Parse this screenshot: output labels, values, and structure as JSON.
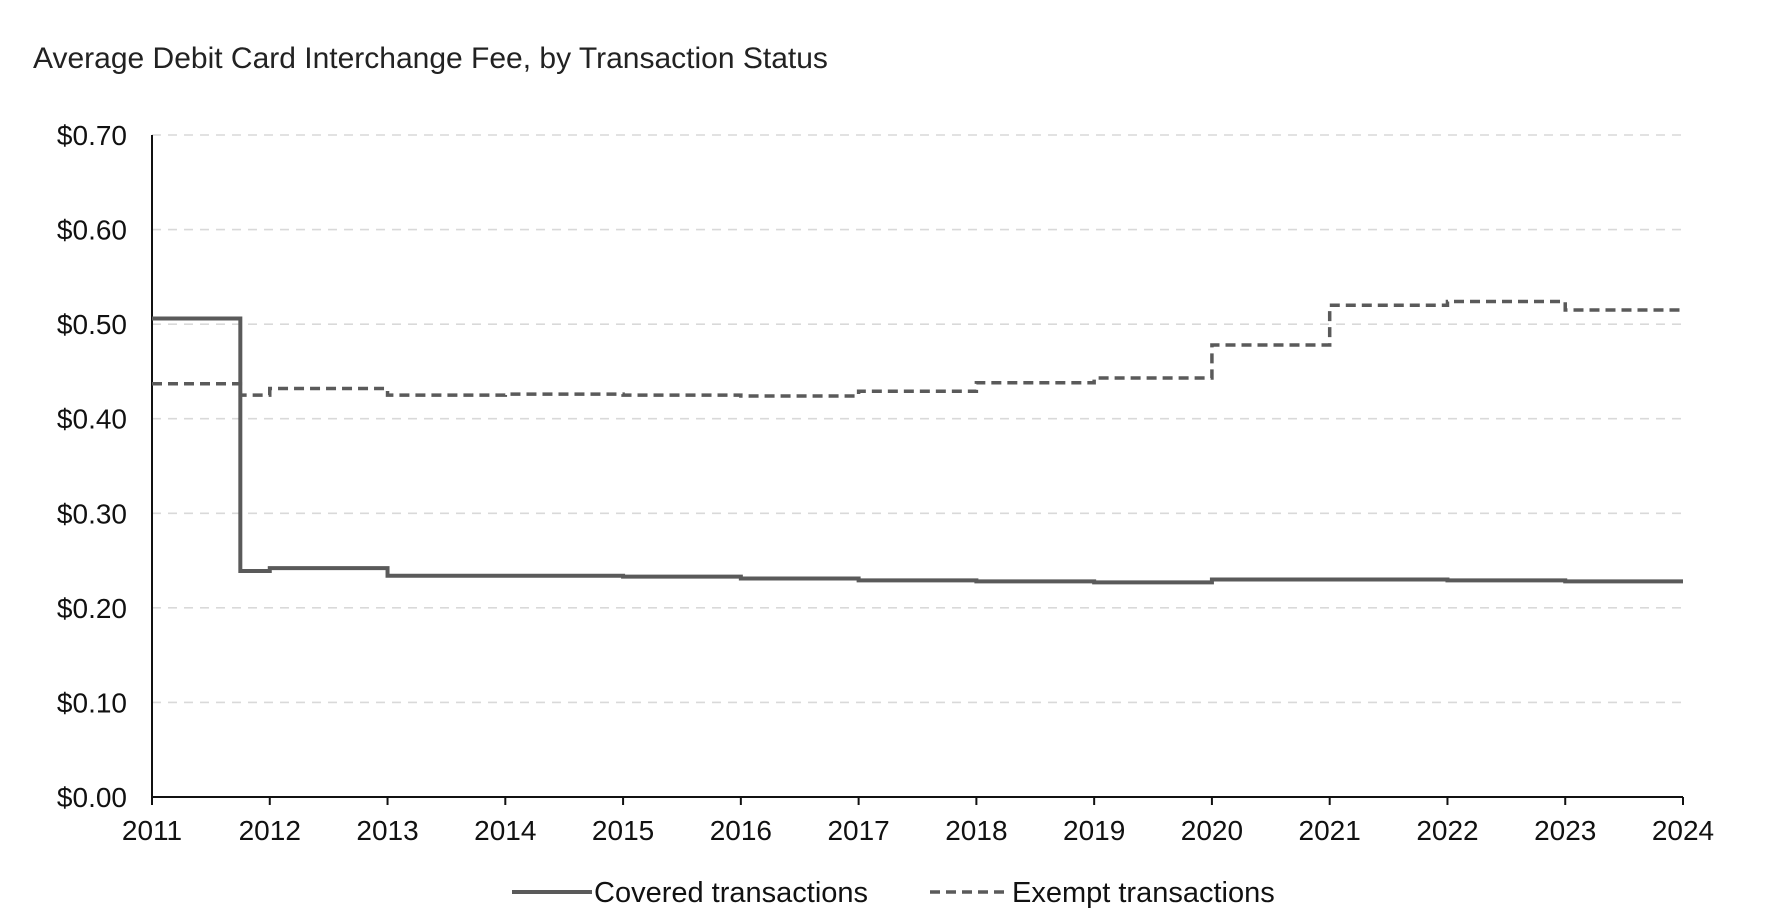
{
  "chart_data": {
    "type": "line",
    "title": "Average Debit Card Interchange Fee, by Transaction Status",
    "xlabel": "",
    "ylabel": "",
    "x_ticks": [
      "2011",
      "2012",
      "2013",
      "2014",
      "2015",
      "2016",
      "2017",
      "2018",
      "2019",
      "2020",
      "2021",
      "2022",
      "2023",
      "2024"
    ],
    "y_ticks": [
      "$0.00",
      "$0.10",
      "$0.20",
      "$0.30",
      "$0.40",
      "$0.50",
      "$0.60",
      "$0.70"
    ],
    "ylim": [
      0,
      0.7
    ],
    "xlim": [
      2011,
      2024
    ],
    "grid": true,
    "step": true,
    "legend_position": "bottom",
    "series": [
      {
        "name": "Covered transactions",
        "style": "solid",
        "color": "#5a5a5a",
        "points": [
          {
            "x": 2011.0,
            "y": 0.506
          },
          {
            "x": 2011.75,
            "y": 0.239
          },
          {
            "x": 2012.0,
            "y": 0.242
          },
          {
            "x": 2013.0,
            "y": 0.234
          },
          {
            "x": 2014.0,
            "y": 0.234
          },
          {
            "x": 2015.0,
            "y": 0.233
          },
          {
            "x": 2016.0,
            "y": 0.231
          },
          {
            "x": 2017.0,
            "y": 0.229
          },
          {
            "x": 2018.0,
            "y": 0.228
          },
          {
            "x": 2019.0,
            "y": 0.227
          },
          {
            "x": 2020.0,
            "y": 0.23
          },
          {
            "x": 2021.0,
            "y": 0.23
          },
          {
            "x": 2022.0,
            "y": 0.229
          },
          {
            "x": 2023.0,
            "y": 0.228
          }
        ]
      },
      {
        "name": "Exempt transactions",
        "style": "dashed",
        "color": "#5a5a5a",
        "points": [
          {
            "x": 2011.0,
            "y": 0.437
          },
          {
            "x": 2011.75,
            "y": 0.425
          },
          {
            "x": 2012.0,
            "y": 0.432
          },
          {
            "x": 2013.0,
            "y": 0.425
          },
          {
            "x": 2014.0,
            "y": 0.426
          },
          {
            "x": 2015.0,
            "y": 0.425
          },
          {
            "x": 2016.0,
            "y": 0.424
          },
          {
            "x": 2017.0,
            "y": 0.429
          },
          {
            "x": 2018.0,
            "y": 0.438
          },
          {
            "x": 2019.0,
            "y": 0.443
          },
          {
            "x": 2020.0,
            "y": 0.478
          },
          {
            "x": 2021.0,
            "y": 0.52
          },
          {
            "x": 2022.0,
            "y": 0.524
          },
          {
            "x": 2023.0,
            "y": 0.515
          }
        ]
      }
    ]
  }
}
